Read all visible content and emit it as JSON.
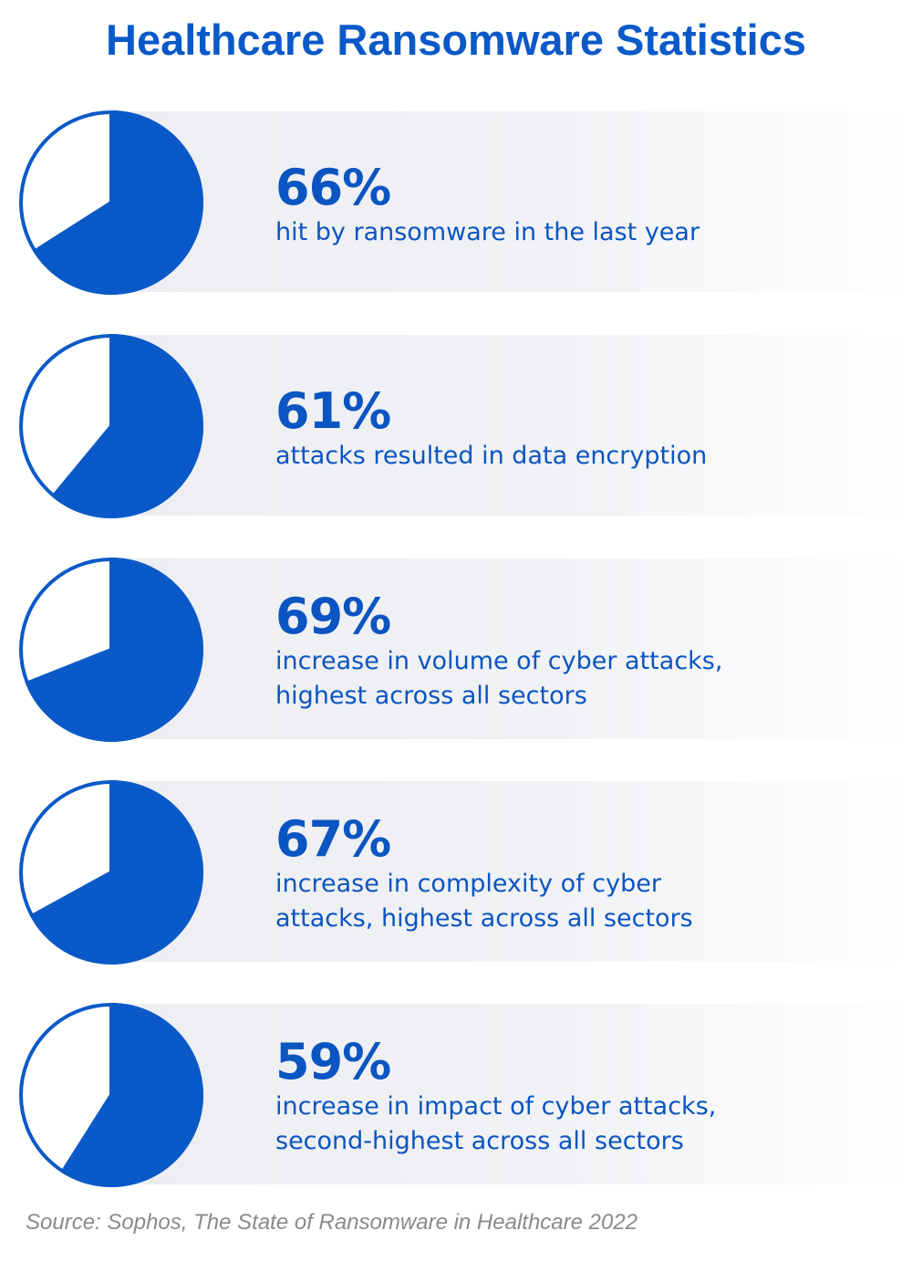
{
  "title": "Healthcare Ransomware Statistics",
  "colors": {
    "accent": "#0a59c8",
    "band": "#eff0f3",
    "source_text": "#8a8a8a"
  },
  "chart_data": {
    "type": "pie",
    "title": "Healthcare Ransomware Statistics",
    "items": [
      {
        "value": 66,
        "label": "66%",
        "description": "hit by ransomware in the last year"
      },
      {
        "value": 61,
        "label": "61%",
        "description": "attacks resulted in data encryption"
      },
      {
        "value": 69,
        "label": "69%",
        "description": "increase in volume of cyber attacks,\nhighest across all sectors"
      },
      {
        "value": 67,
        "label": "67%",
        "description": "increase in complexity of cyber\nattacks, highest across all sectors"
      },
      {
        "value": 59,
        "label": "59%",
        "description": "increase in impact of cyber attacks,\nsecond-highest across all sectors"
      }
    ]
  },
  "source": "Source: Sophos, The State of Ransomware in Healthcare 2022"
}
